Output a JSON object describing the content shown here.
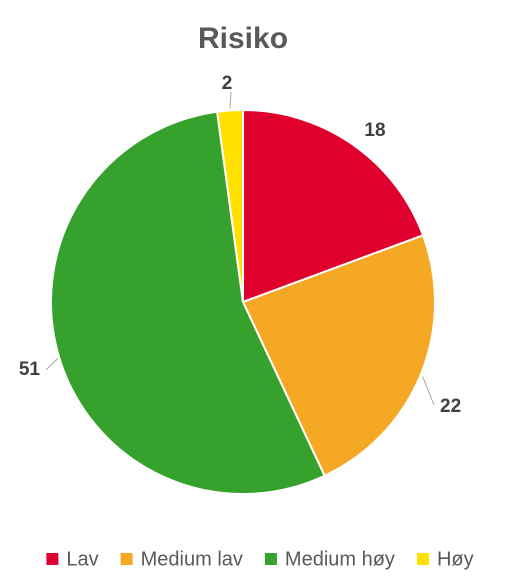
{
  "chart_data": {
    "type": "pie",
    "title": "Risiko",
    "categories": [
      "Lav",
      "Medium lav",
      "Medium høy",
      "Høy"
    ],
    "series": [
      {
        "values": [
          18,
          22,
          51,
          2
        ],
        "colors": [
          "#e0002d",
          "#f4a824",
          "#36a12d",
          "#ffe100"
        ]
      }
    ],
    "data_labels": [
      "18",
      "22",
      "51",
      "2"
    ],
    "legend_position": "bottom",
    "start_angle_deg": 0,
    "direction": "clockwise"
  }
}
